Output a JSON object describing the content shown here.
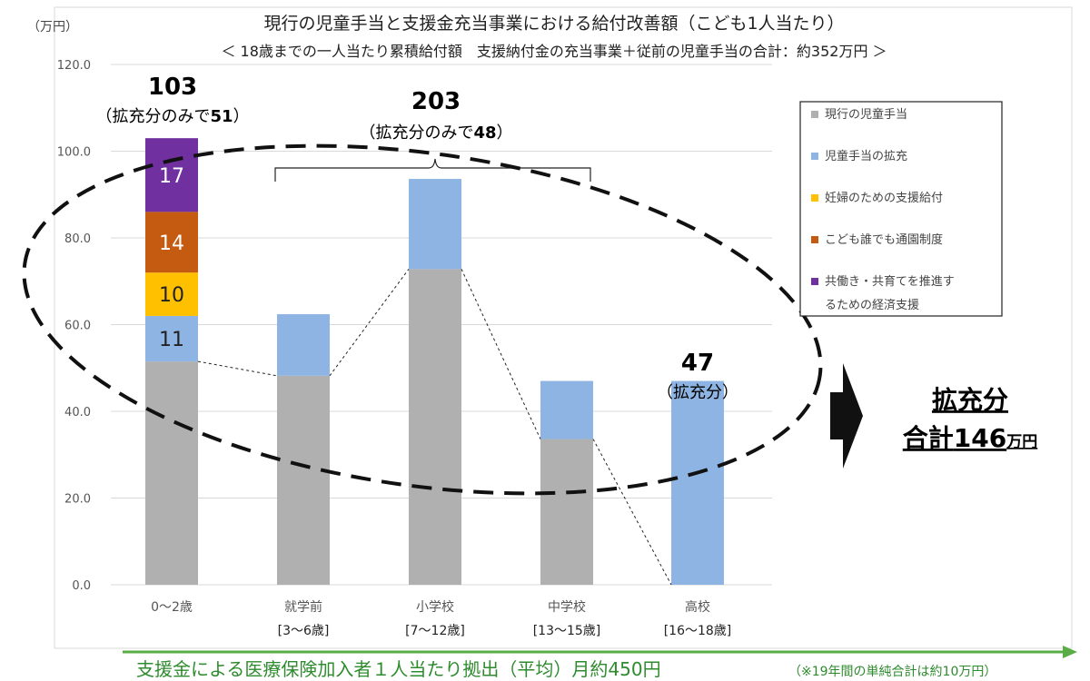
{
  "chart_data": {
    "type": "bar",
    "stacked": true,
    "title": "現行の児童手当と支援金充当事業における給付改善額（こども1人当たり）",
    "subtitle": "＜ 18歳までの一人当たり累積給付額　支援納付金の充当事業＋従前の児童手当の合計：約352万円 ＞",
    "y_unit": "（万円）",
    "ylim": [
      0,
      120
    ],
    "yticks": [
      "0.0",
      "20.0",
      "40.0",
      "60.0",
      "80.0",
      "100.0",
      "120.0"
    ],
    "grid": true,
    "legend_position": "right",
    "categories": [
      "0～2歳",
      "就学前",
      "小学校",
      "中学校",
      "高校"
    ],
    "category_sublabels": [
      "",
      "[3～6歳]",
      "[7～12歳]",
      "[13～15歳]",
      "[16～18歳]"
    ],
    "series": [
      {
        "name": "現行の児童手当",
        "color": "#b0b0b0",
        "values": [
          51.5,
          48.2,
          72.8,
          33.6,
          0
        ]
      },
      {
        "name": "児童手当の拡充",
        "color": "#8db4e2",
        "values": [
          10.5,
          14.2,
          20.8,
          13.4,
          47
        ]
      },
      {
        "name": "妊婦のための支援給付",
        "color": "#ffc000",
        "values": [
          10,
          0,
          0,
          0,
          0
        ]
      },
      {
        "name": "こども誰でも通園制度",
        "color": "#c55a11",
        "values": [
          14,
          0,
          0,
          0,
          0
        ]
      },
      {
        "name": "共働き・共育てを推進するための経済支援",
        "color": "#7030a0",
        "values": [
          17,
          0,
          0,
          0,
          0
        ]
      }
    ],
    "legend_lines": [
      [
        "現行の児童手当"
      ],
      [
        "児童手当の拡充"
      ],
      [
        "妊婦のための支援給付"
      ],
      [
        "こども誰でも通園制度"
      ],
      [
        "共働き・共育てを推進す",
        "るための経済支援"
      ]
    ],
    "segment_labels": [
      "11",
      "10",
      "14",
      "17"
    ],
    "annotations": {
      "first_total": "103",
      "first_note_prefix": "（拡充分のみで",
      "first_note_value": "51",
      "first_note_suffix": "）",
      "mid_total": "203",
      "mid_note_prefix": "（拡充分のみで",
      "mid_note_value": "48",
      "mid_note_suffix": "）",
      "last_total": "47",
      "last_note": "（拡充分）",
      "sum_label": "拡充分",
      "sum_prefix": "合計",
      "sum_value": "146",
      "sum_unit": "万円"
    },
    "footer": {
      "main": "支援金による医療保険加入者１人当たり拠出（平均）月約450円",
      "note": "（※19年間の単純合計は約10万円）"
    }
  }
}
